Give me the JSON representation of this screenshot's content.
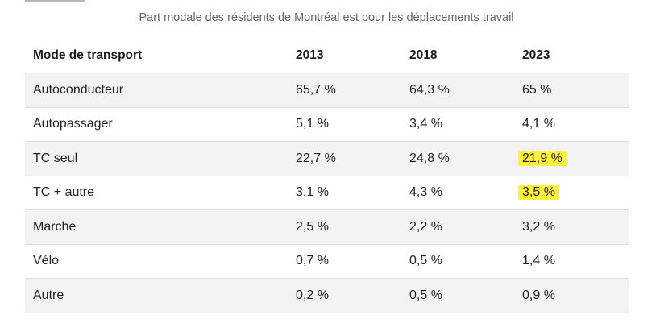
{
  "caption": "Part modale des résidents de Montréal est pour les déplacements travail",
  "highlight_color": "#fff23a",
  "table": {
    "headers": [
      "Mode de transport",
      "2013",
      "2018",
      "2023"
    ],
    "rows": [
      {
        "mode": "Autoconducteur",
        "y2013": "65,7 %",
        "y2018": "64,3 %",
        "y2023": "65 %",
        "highlight_2023": false
      },
      {
        "mode": "Autopassager",
        "y2013": "5,1 %",
        "y2018": "3,4 %",
        "y2023": "4,1 %",
        "highlight_2023": false
      },
      {
        "mode": "TC seul",
        "y2013": "22,7 %",
        "y2018": "24,8 %",
        "y2023": "21,9 %",
        "highlight_2023": true
      },
      {
        "mode": "TC + autre",
        "y2013": "3,1 %",
        "y2018": "4,3 %",
        "y2023": "3,5 %",
        "highlight_2023": true
      },
      {
        "mode": "Marche",
        "y2013": "2,5 %",
        "y2018": "2,2 %",
        "y2023": "3,2 %",
        "highlight_2023": false
      },
      {
        "mode": "Vélo",
        "y2013": "0,7 %",
        "y2018": "0,5 %",
        "y2023": "1,4 %",
        "highlight_2023": false
      },
      {
        "mode": "Autre",
        "y2013": "0,2 %",
        "y2018": "0,5 %",
        "y2023": "0,9 %",
        "highlight_2023": false
      }
    ]
  }
}
